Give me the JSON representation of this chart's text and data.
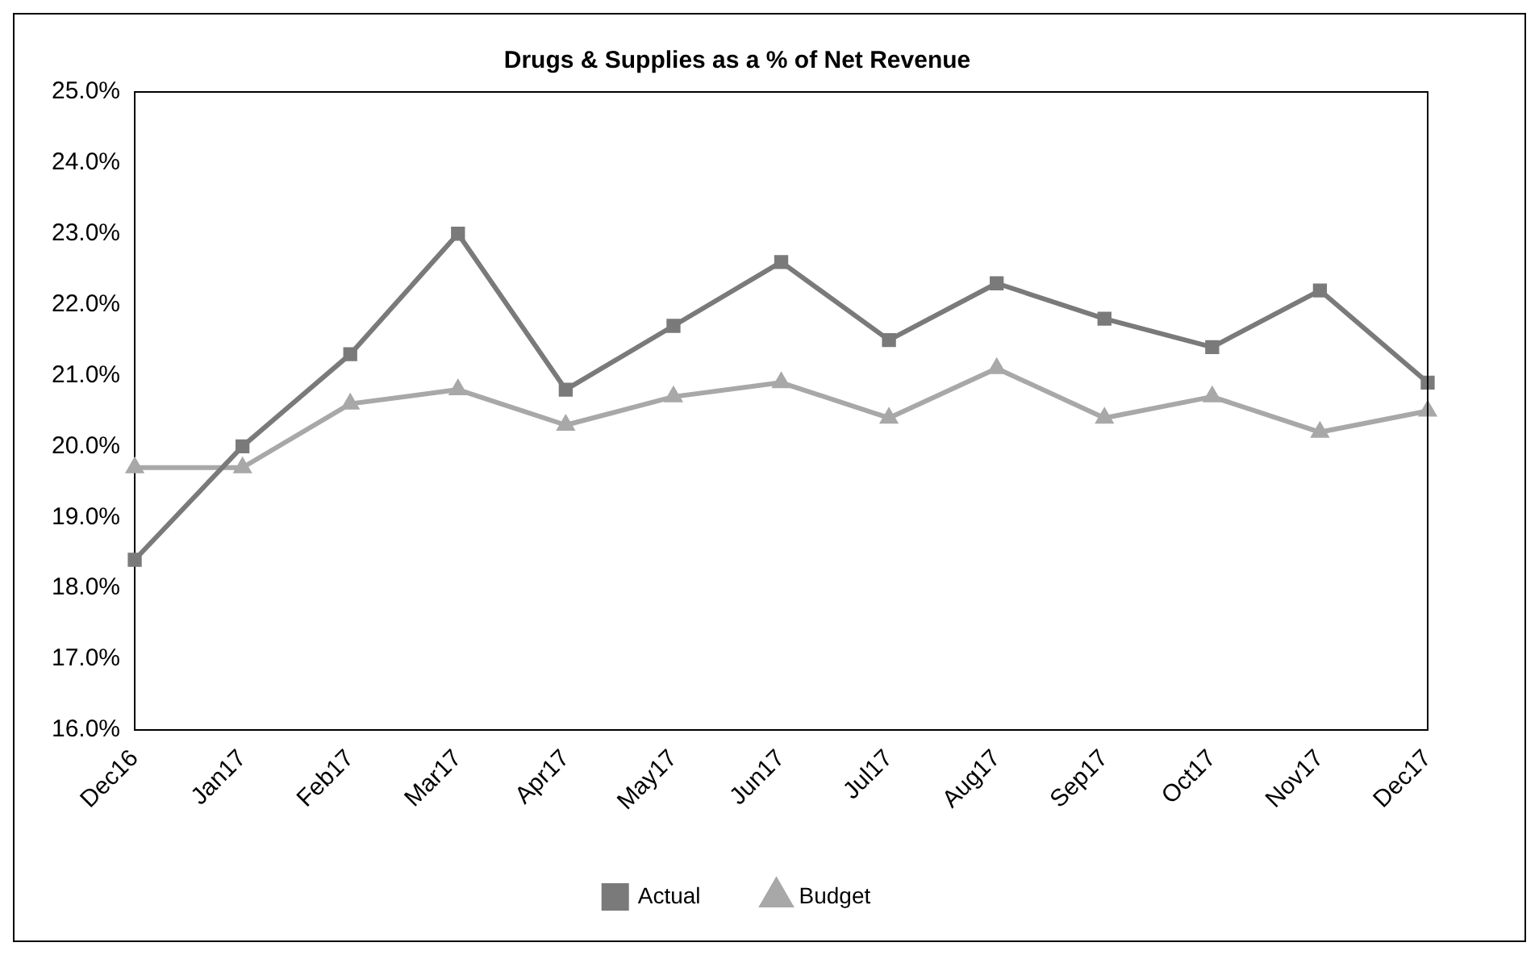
{
  "chart_data": {
    "type": "line",
    "title": "Drugs & Supplies as a % of Net Revenue",
    "categories": [
      "Dec16",
      "Jan17",
      "Feb17",
      "Mar17",
      "Apr17",
      "May17",
      "Jun17",
      "Jul17",
      "Aug17",
      "Sep17",
      "Oct17",
      "Nov17",
      "Dec17"
    ],
    "series": [
      {
        "name": "Actual",
        "color": "#7a7a7a",
        "marker": "square",
        "values": [
          18.4,
          20.0,
          21.3,
          23.0,
          20.8,
          21.7,
          22.6,
          21.5,
          22.3,
          21.8,
          21.4,
          22.2,
          20.9
        ]
      },
      {
        "name": "Budget",
        "color": "#a8a8a8",
        "marker": "triangle",
        "values": [
          19.7,
          19.7,
          20.6,
          20.8,
          20.3,
          20.7,
          20.9,
          20.4,
          21.1,
          20.4,
          20.7,
          20.2,
          20.5
        ]
      }
    ],
    "ylim": [
      16,
      25
    ],
    "yticks": [
      {
        "value": 16,
        "label": "16.0%"
      },
      {
        "value": 17,
        "label": "17.0%"
      },
      {
        "value": 18,
        "label": "18.0%"
      },
      {
        "value": 19,
        "label": "19.0%"
      },
      {
        "value": 20,
        "label": "20.0%"
      },
      {
        "value": 21,
        "label": "21.0%"
      },
      {
        "value": 22,
        "label": "22.0%"
      },
      {
        "value": 23,
        "label": "23.0%"
      },
      {
        "value": 24,
        "label": "24.0%"
      },
      {
        "value": 25,
        "label": "25.0%"
      }
    ],
    "grid": false,
    "legend": "bottom",
    "line_style": "solid"
  }
}
